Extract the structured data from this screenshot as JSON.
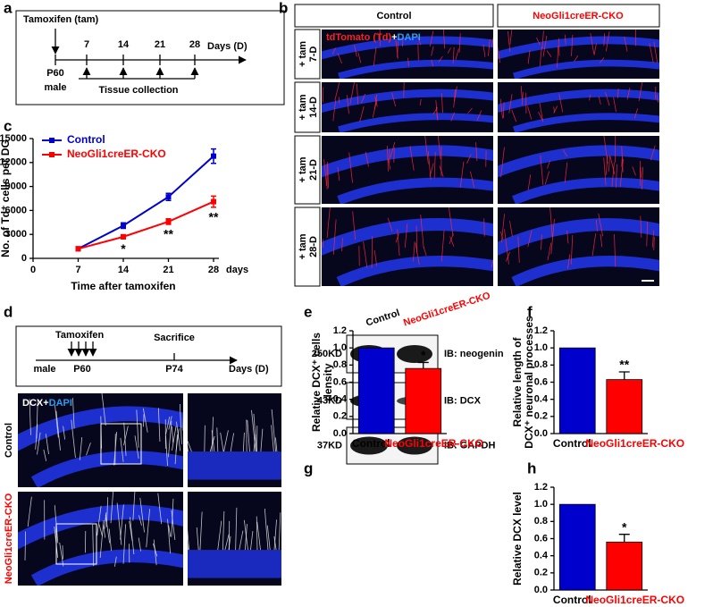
{
  "panel_labels": [
    "a",
    "b",
    "c",
    "d",
    "e",
    "f",
    "g",
    "h"
  ],
  "panel_a": {
    "title": "Tamoxifen (tam)",
    "days": [
      7,
      14,
      21,
      28
    ],
    "axis_label": "Days (D)",
    "start": "P60",
    "animal": "male",
    "collection": "Tissue collection"
  },
  "panel_b": {
    "columns": [
      "Control",
      "NeoGli1creER-CKO"
    ],
    "stain": {
      "marker": "tdTomato (Td)",
      "join": "+",
      "counter": "DAPI"
    },
    "rows": [
      [
        "+ tam",
        "7-D"
      ],
      [
        "+ tam",
        "14-D"
      ],
      [
        "+ tam",
        "21-D"
      ],
      [
        "+ tam",
        "28-D"
      ]
    ]
  },
  "panel_d": {
    "title": "Tamoxifen",
    "event": "Sacrifice",
    "animal": "male",
    "start": "P60",
    "end": "P74",
    "axis_label": "Days (D)",
    "stain": {
      "marker": "DCX",
      "join": "+",
      "counter": "DAPI"
    },
    "rows": [
      "Control",
      "NeoGli1creER-CKO"
    ]
  },
  "panel_g": {
    "lanes": [
      "Control",
      "NeoGli1creER-CKO"
    ],
    "blots": [
      {
        "size": "250KD",
        "antibody": "IB: neogenin"
      },
      {
        "size": "43KD",
        "antibody": "IB: DCX"
      },
      {
        "size": "37KD",
        "antibody": "IB: GAPDH"
      }
    ]
  },
  "chart_data": [
    {
      "type": "line",
      "x": [
        7,
        14,
        21,
        28
      ],
      "xlim": [
        0,
        28
      ],
      "xticks": [
        0,
        7,
        14,
        21,
        28
      ],
      "x_unit": "days",
      "xlabel": "Time after tamoxifen",
      "ylabel": [
        "No. of Td⁺ cells per DG"
      ],
      "ylim": [
        0,
        15000
      ],
      "yticks": [
        0,
        3000,
        6000,
        9000,
        12000,
        15000
      ],
      "series": [
        {
          "name": "Control",
          "color": "#0000cc",
          "values": [
            1200,
            4100,
            7700,
            12800
          ],
          "errors": [
            150,
            350,
            450,
            900
          ]
        },
        {
          "name": "NeoGli1creER-CKO",
          "color": "#ff0000",
          "values": [
            1200,
            2700,
            4600,
            7100
          ],
          "errors": [
            100,
            250,
            350,
            700
          ],
          "significance": [
            null,
            "*",
            "**",
            "**"
          ]
        }
      ]
    },
    {
      "type": "bar",
      "categories": [
        "Control",
        "NeoGli1creER-CKO"
      ],
      "values": [
        1,
        0.76
      ],
      "errors": [
        null,
        0.07
      ],
      "significance": [
        null,
        "*"
      ],
      "colors": [
        "#0000cc",
        "#ff0000"
      ],
      "label_colors": [
        "#000000",
        "#ff0000"
      ],
      "ylabel": [
        "Relative DCX⁺ cells",
        "density"
      ],
      "ylim": [
        0,
        1.2
      ],
      "yticks": [
        {
          "value": 0,
          "label": "0.0"
        },
        0.2,
        0.4,
        0.6,
        0.8,
        {
          "value": 1,
          "label": "1.0"
        },
        1.2
      ]
    },
    {
      "type": "bar",
      "categories": [
        "Control",
        "NeoGli1creER-CKO"
      ],
      "values": [
        1,
        0.63
      ],
      "errors": [
        null,
        0.09
      ],
      "significance": [
        null,
        "**"
      ],
      "colors": [
        "#0000cc",
        "#ff0000"
      ],
      "label_colors": [
        "#000000",
        "#ff0000"
      ],
      "ylabel": [
        "Relative length of",
        "DCX⁺ neuronal processes"
      ],
      "ylim": [
        0,
        1.2
      ],
      "yticks": [
        {
          "value": 0,
          "label": "0.0"
        },
        0.2,
        0.4,
        0.6,
        0.8,
        {
          "value": 1,
          "label": "1.0"
        },
        1.2
      ]
    },
    {
      "type": "bar",
      "categories": [
        "Control",
        "NeoGli1creER-CKO"
      ],
      "values": [
        1,
        0.56
      ],
      "errors": [
        null,
        0.09
      ],
      "significance": [
        null,
        "*"
      ],
      "colors": [
        "#0000cc",
        "#ff0000"
      ],
      "label_colors": [
        "#000000",
        "#ff0000"
      ],
      "ylabel": [
        "Relative DCX level"
      ],
      "ylim": [
        0,
        1.2
      ],
      "yticks": [
        {
          "value": 0,
          "label": "0.0"
        },
        0.2,
        0.4,
        0.6,
        0.8,
        {
          "value": 1,
          "label": "1.0"
        },
        1.2
      ]
    }
  ]
}
